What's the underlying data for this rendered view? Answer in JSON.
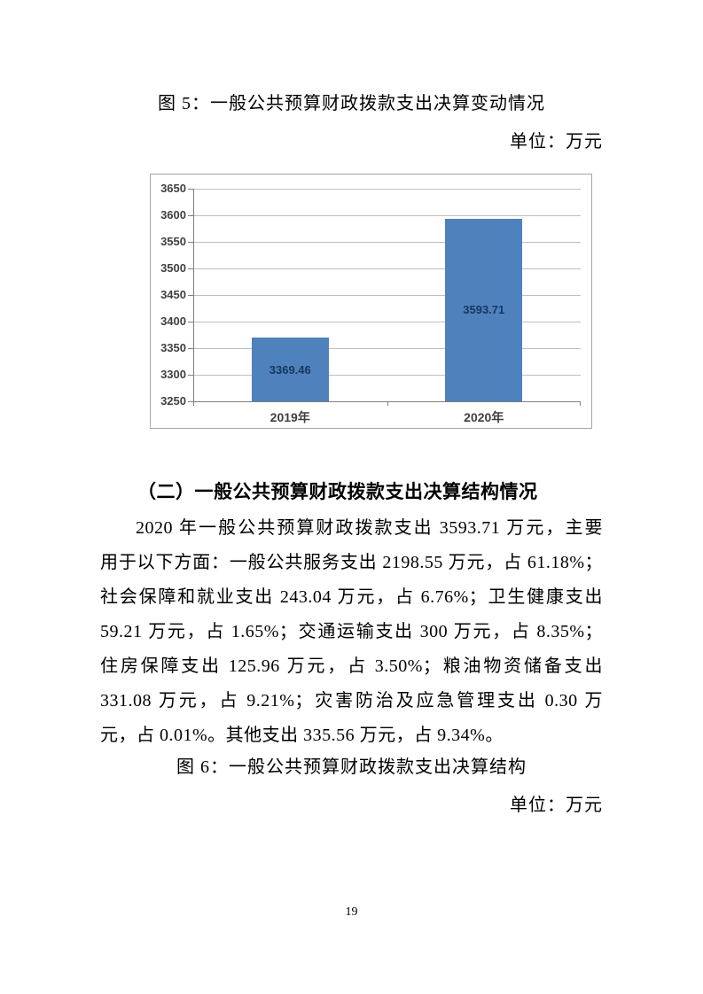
{
  "page": {
    "number": "19"
  },
  "figure5": {
    "title": "图 5：一般公共预算财政拨款支出决算变动情况",
    "unit_label": "单位：万元"
  },
  "chart_data": {
    "type": "bar",
    "title": "图 5：一般公共预算财政拨款支出决算变动情况",
    "unit": "万元",
    "categories": [
      "2019年",
      "2020年"
    ],
    "values": [
      3369.46,
      3593.71
    ],
    "value_labels": [
      "3369.46",
      "3593.71"
    ],
    "ylim": [
      3250,
      3650
    ],
    "ytick_step": 50,
    "ytick_labels": [
      "3250",
      "3300",
      "3350",
      "3400",
      "3450",
      "3500",
      "3550",
      "3600",
      "3650"
    ],
    "grid": true,
    "legend": "none",
    "bar_color": "#4f81bd",
    "value_label_color": "#17375e"
  },
  "section2": {
    "heading": "（二）一般公共预算财政拨款支出决算结构情况",
    "paragraph_lines": [
      "2020 年一般公共预算财政拨款支出 3593.71 万元，主要",
      "用于以下方面：一般公共服务支出 2198.55 万元，占 61.18%；",
      "社会保障和就业支出 243.04 万元，占 6.76%；卫生健康支出",
      "59.21 万元，占 1.65%；交通运输支出 300 万元，占 8.35%；",
      "住房保障支出 125.96 万元，占 3.50%；粮油物资储备支出",
      "331.08 万元，占 9.21%；灾害防治及应急管理支出 0.30 万",
      "元，占 0.01%。其他支出 335.56 万元，占 9.34%。"
    ]
  },
  "figure6": {
    "title": "图 6：一般公共预算财政拨款支出决算结构",
    "unit_label": "单位：万元"
  }
}
